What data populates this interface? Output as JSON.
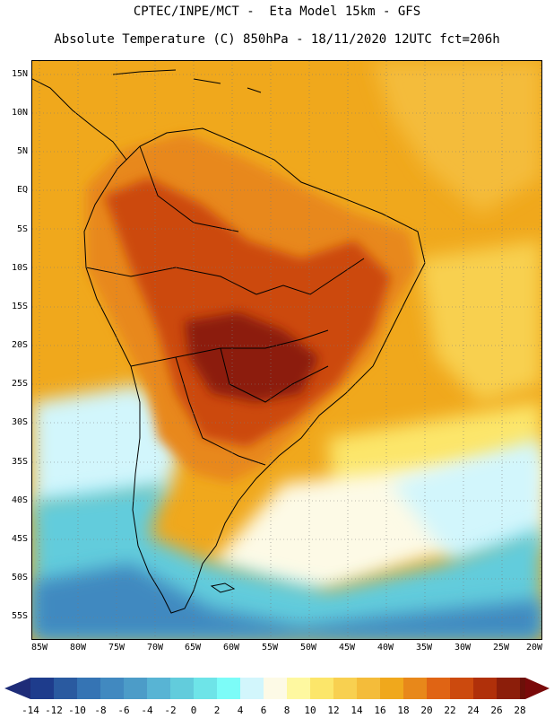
{
  "header": {
    "line1": "CPTEC/INPE/MCT -  Eta Model 15km - GFS",
    "line2": "Absolute Temperature (C) 850hPa - 18/11/2020 12UTC fct=206h"
  },
  "lat_labels": [
    "15N",
    "10N",
    "5N",
    "EQ",
    "5S",
    "10S",
    "15S",
    "20S",
    "25S",
    "30S",
    "35S",
    "40S",
    "45S",
    "50S",
    "55S"
  ],
  "lon_labels": [
    "85W",
    "80W",
    "75W",
    "70W",
    "65W",
    "60W",
    "55W",
    "50W",
    "45W",
    "40W",
    "35W",
    "30W",
    "25W",
    "20W"
  ],
  "colorbar": {
    "labels": [
      "-14",
      "-12",
      "-10",
      "-8",
      "-6",
      "-4",
      "-2",
      "0",
      "2",
      "4",
      "6",
      "8",
      "10",
      "12",
      "14",
      "16",
      "18",
      "20",
      "22",
      "24",
      "26",
      "28"
    ],
    "colors": [
      "#1e3c8c",
      "#2a5aa0",
      "#3574b4",
      "#4189c0",
      "#4c9cc8",
      "#58b4d4",
      "#62ccdc",
      "#6ee4e8",
      "#7cfcf8",
      "#d2f6fc",
      "#fdfae6",
      "#fef8a0",
      "#fce66a",
      "#f8d050",
      "#f4bc3a",
      "#f0a81c",
      "#e8881a",
      "#e06414",
      "#cc4a0e",
      "#b0300a",
      "#8c1e0a",
      "#6c1008"
    ],
    "under_color": "#1e2c78",
    "over_color": "#7a0a0a"
  },
  "map": {
    "ocean_color": "#f0a81c",
    "warm_color": "#f4bc3a",
    "land_hot_color": "#cc4a0e",
    "land_hottest_color": "#8c1e0a",
    "cold_color": "#62ccdc",
    "coldest_color": "#4189c0"
  }
}
